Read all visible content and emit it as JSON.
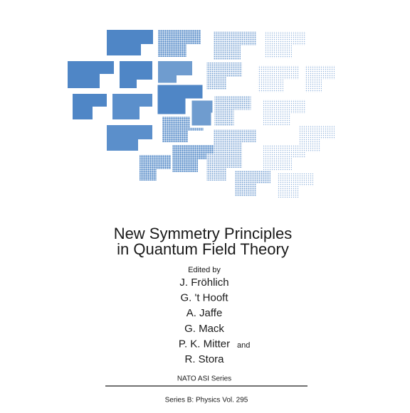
{
  "cover": {
    "title": [
      "New Symmetry Principles",
      "in Quantum Field Theory"
    ],
    "edited_by": "Edited by",
    "editors": [
      "J. Fröhlich",
      "G. 't Hooft",
      "A. Jaffe",
      "G. Mack",
      "P. K. Mitter",
      "R. Stora"
    ],
    "conjunction": "and",
    "series": "NATO ASI Series",
    "volume": "Series B: Physics Vol. 295"
  }
}
